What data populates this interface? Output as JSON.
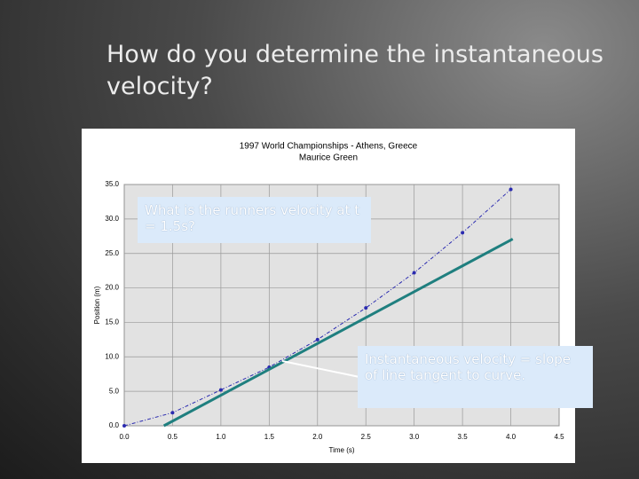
{
  "slide": {
    "title": "How do you determine the instantaneous velocity?",
    "callouts": [
      "What is the runners velocity at t = 1.5s?",
      "Instantaneous velocity = slope of line tangent to curve."
    ]
  },
  "chart_data": {
    "type": "line",
    "title": "1997 World Championships - Athens, Greece",
    "subtitle": "Maurice Green",
    "x_label": "Time (s)",
    "y_label": "Position (m)",
    "series": [
      {
        "name": "Position",
        "color": "#2b2bb0",
        "dashed": true,
        "markers": true,
        "x": [
          0,
          0.5,
          1.0,
          1.5,
          2.0,
          2.5,
          3.0,
          3.5,
          4.0
        ],
        "values": [
          0,
          1.9,
          5.2,
          8.5,
          12.5,
          17.1,
          22.2,
          28.0,
          34.3
        ]
      },
      {
        "name": "Tangent",
        "color": "#1f7f7f",
        "dashed": false,
        "markers": false,
        "x": [
          0.41,
          4.02
        ],
        "values": [
          0,
          27.1
        ]
      }
    ],
    "xlim": [
      0,
      4.5
    ],
    "xticks": [
      {
        "value": 0,
        "label": "0.0"
      },
      0.5,
      {
        "value": 1,
        "label": "1.0"
      },
      1.5,
      {
        "value": 2,
        "label": "2.0"
      },
      2.5,
      {
        "value": 3,
        "label": "3.0"
      },
      3.5,
      {
        "value": 4,
        "label": "4.0"
      },
      4.5
    ],
    "ylim": [
      0,
      35
    ],
    "yticks": [
      {
        "value": 0,
        "label": "0.0"
      },
      {
        "value": 5,
        "label": "5.0"
      },
      {
        "value": 10,
        "label": "10.0"
      },
      {
        "value": 15,
        "label": "15.0"
      },
      {
        "value": 20,
        "label": "20.0"
      },
      {
        "value": 25,
        "label": "25.0"
      },
      {
        "value": 30,
        "label": "30.0"
      },
      {
        "value": 35,
        "label": "35.0"
      }
    ],
    "grid": true
  }
}
